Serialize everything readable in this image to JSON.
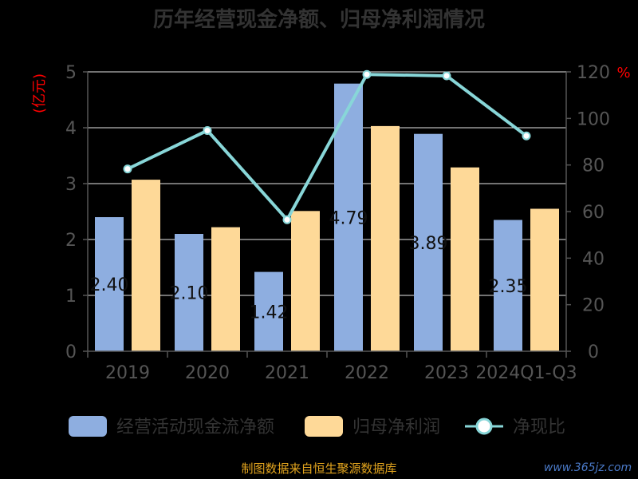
{
  "chart_data": {
    "type": "bar",
    "title": "历年经营现金净额、归母净利润情况",
    "categories": [
      "2019",
      "2020",
      "2021",
      "2022",
      "2023",
      "2024Q1-Q3"
    ],
    "series": [
      {
        "name": "经营活动现金流净额",
        "type": "bar",
        "axis": "left",
        "color": "#8eaee0",
        "values": [
          2.4,
          2.1,
          1.42,
          4.79,
          3.89,
          2.35
        ],
        "labels": [
          "2.40",
          "2.10",
          "1.42",
          "4.79",
          "3.89",
          "2.35"
        ]
      },
      {
        "name": "归母净利润",
        "type": "bar",
        "axis": "left",
        "color": "#fed998",
        "values": [
          3.07,
          2.22,
          2.51,
          4.03,
          3.29,
          2.55
        ]
      },
      {
        "name": "净现比",
        "type": "line",
        "axis": "right",
        "color": "#88d6d8",
        "values": [
          78.3,
          94.8,
          56.5,
          118.9,
          118.3,
          92.5
        ]
      }
    ],
    "yleft": {
      "unit": "(亿元)",
      "ylim": [
        0,
        5
      ],
      "ticks": [
        "0",
        "1",
        "2",
        "3",
        "4",
        "5"
      ]
    },
    "yright": {
      "unit": "%",
      "ylim": [
        0,
        120
      ],
      "ticks": [
        "0",
        "20",
        "40",
        "60",
        "80",
        "100",
        "120"
      ]
    },
    "grid": true,
    "legend_position": "bottom"
  },
  "footer": {
    "source": "制图数据来自恒生聚源数据库",
    "site": "www.365jz.com"
  }
}
